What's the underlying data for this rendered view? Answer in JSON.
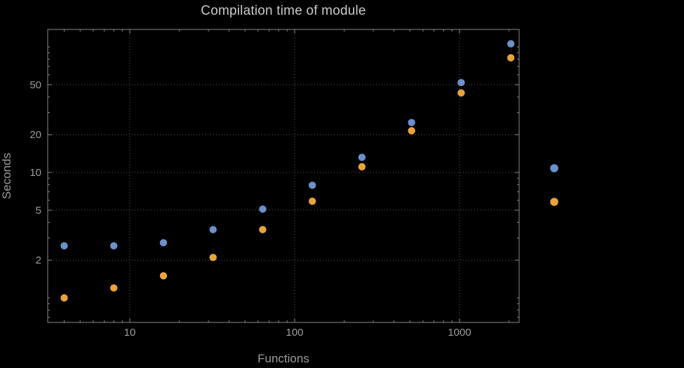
{
  "colors": {
    "background": "#000000",
    "frame": "#8a8a8a",
    "grid": "#5c5c5c",
    "tick_label": "#9c9c9c",
    "axis_label": "#9c9c9c",
    "title": "#c9c9c9"
  },
  "chart_data": {
    "type": "scatter",
    "title": "Compilation time of module",
    "xlabel": "Functions",
    "ylabel": "Seconds",
    "x_scale": "log",
    "y_scale": "log",
    "grid": "dotted lines at labeled major ticks",
    "legend_position": "right, outside frame (unlabeled color markers)",
    "xlim": [
      3.2,
      2300
    ],
    "ylim": [
      0.64,
      138
    ],
    "x_ticks": [
      10,
      100,
      1000
    ],
    "x_tick_labels": [
      "10",
      "100",
      "1000"
    ],
    "y_ticks": [
      2,
      5,
      10,
      20,
      50
    ],
    "y_tick_labels": [
      "2",
      "5",
      "10",
      "20",
      "50"
    ],
    "x": [
      4,
      8,
      16,
      32,
      64,
      128,
      256,
      512,
      1024,
      2048
    ],
    "series": [
      {
        "name": "blue",
        "color": "#6b90ca",
        "values": [
          2.6,
          2.6,
          2.75,
          3.5,
          5.1,
          7.9,
          13.2,
          25,
          52,
          106
        ]
      },
      {
        "name": "orange",
        "color": "#e9a33c",
        "values": [
          1.0,
          1.2,
          1.5,
          2.1,
          3.5,
          5.9,
          11.1,
          21.5,
          43,
          82
        ]
      }
    ],
    "legend_markers": [
      {
        "series": "blue",
        "color": "#6b90ca"
      },
      {
        "series": "orange",
        "color": "#e9a33c"
      }
    ]
  }
}
